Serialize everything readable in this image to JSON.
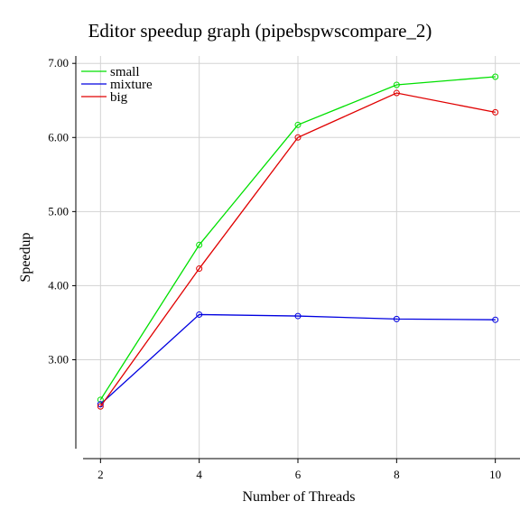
{
  "chart_data": {
    "type": "line",
    "title": "Editor speedup graph (pipebspwscompare_2)",
    "xlabel": "Number of Threads",
    "ylabel": "Speedup",
    "x": [
      2,
      4,
      6,
      8,
      10
    ],
    "x_tick_labels": [
      "2",
      "4",
      "6",
      "8",
      "10"
    ],
    "y_tick_values": [
      3,
      4,
      5,
      6,
      7
    ],
    "y_tick_labels": [
      "3.00",
      "4.00",
      "5.00",
      "6.00",
      "7.00"
    ],
    "xlim": [
      1.5,
      10.5
    ],
    "ylim": [
      1.8,
      7.1
    ],
    "grid": true,
    "legend_position": "top-left",
    "series": [
      {
        "name": "small",
        "color": "#00e000",
        "values": [
          2.46,
          4.55,
          6.17,
          6.71,
          6.82
        ]
      },
      {
        "name": "mixture",
        "color": "#0000e0",
        "values": [
          2.4,
          3.61,
          3.59,
          3.55,
          3.54
        ]
      },
      {
        "name": "big",
        "color": "#e00000",
        "values": [
          2.37,
          4.23,
          6.0,
          6.6,
          6.34
        ]
      }
    ]
  }
}
